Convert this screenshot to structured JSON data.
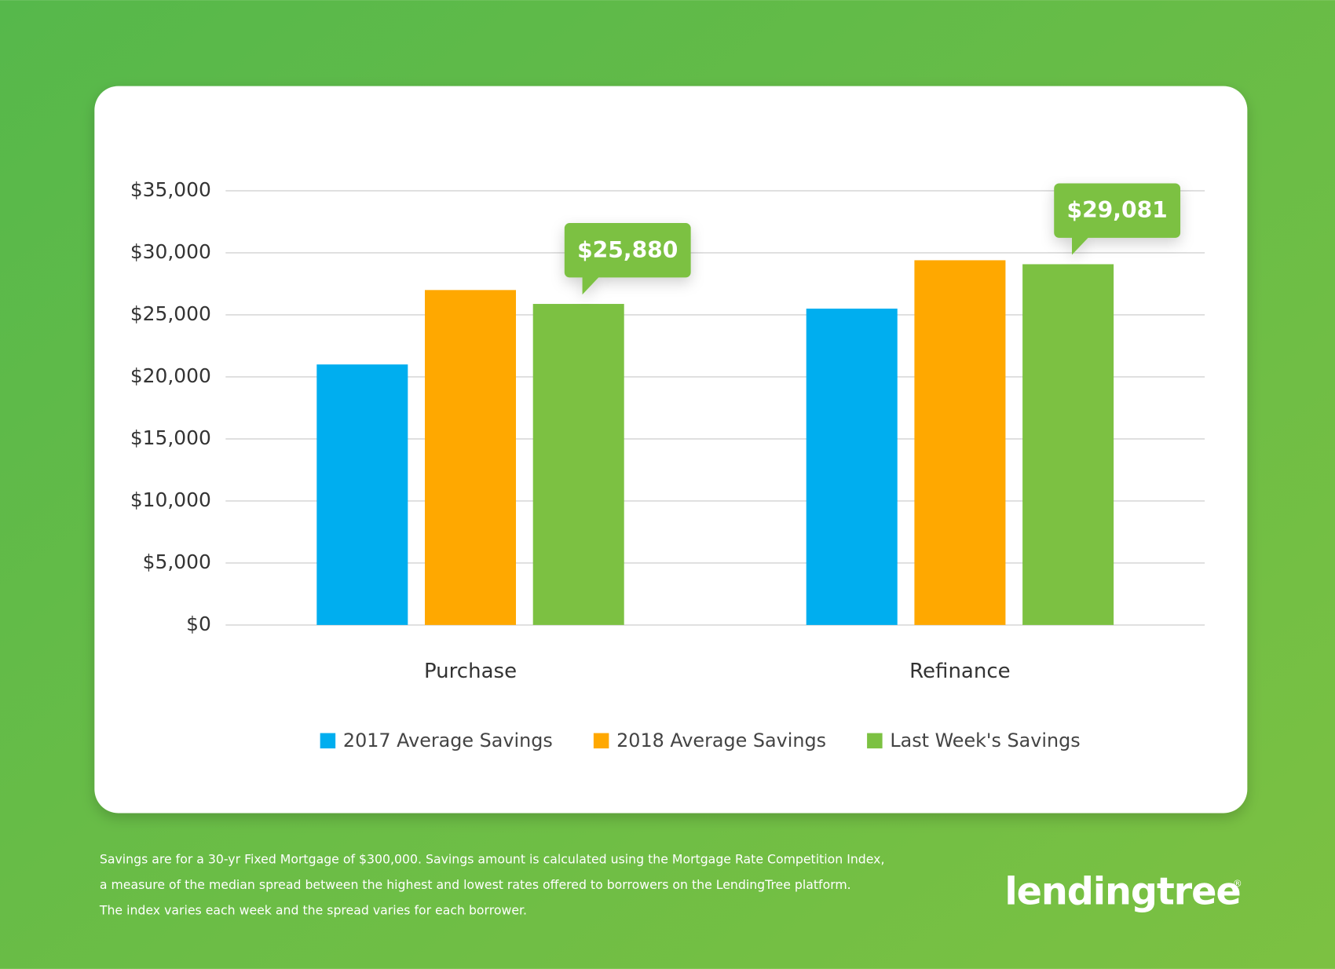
{
  "chart_data": {
    "type": "bar",
    "categories": [
      "Purchase",
      "Refinance"
    ],
    "series": [
      {
        "name": "2017 Average Savings",
        "color": "#00aeef",
        "values": [
          21000,
          25500
        ]
      },
      {
        "name": "2018 Average Savings",
        "color": "#ffa800",
        "values": [
          27000,
          29400
        ]
      },
      {
        "name": "Last Week's Savings",
        "color": "#7cc142",
        "values": [
          25880,
          29081
        ],
        "value_labels": [
          "$25,880",
          "$29,081"
        ]
      }
    ],
    "ylim": [
      0,
      35000
    ],
    "yticks": [
      {
        "value": 0,
        "label": "$0"
      },
      {
        "value": 5000,
        "label": "$5,000"
      },
      {
        "value": 10000,
        "label": "$10,000"
      },
      {
        "value": 15000,
        "label": "$15,000"
      },
      {
        "value": 20000,
        "label": "$20,000"
      },
      {
        "value": 25000,
        "label": "$25,000"
      },
      {
        "value": 30000,
        "label": "$30,000"
      },
      {
        "value": 35000,
        "label": "$35,000"
      }
    ],
    "grid": true,
    "legend": "bottom"
  },
  "footnote": [
    "Savings are for a 30-yr Fixed Mortgage of $300,000. Savings amount is calculated using the Mortgage Rate Competition Index,",
    "a measure of the median spread between the highest and lowest rates offered to borrowers on the LendingTree platform.",
    "The index varies each week and the spread varies for each borrower."
  ],
  "logo": {
    "text": "lendingtree",
    "mark": "®"
  }
}
